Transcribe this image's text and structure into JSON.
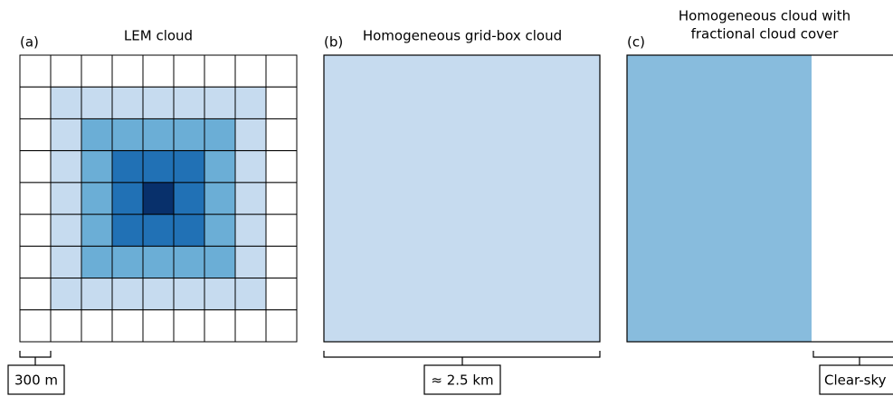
{
  "panels": [
    {
      "letter": "(a)",
      "title": "LEM cloud",
      "scale_label": "300 m"
    },
    {
      "letter": "(b)",
      "title": "Homogeneous grid-box cloud",
      "scale_label": "≈ 2.5 km"
    },
    {
      "letter": "(c)",
      "title_lines": [
        "Homogeneous cloud with",
        "fractional cloud cover"
      ],
      "scale_label": "Clear-sky"
    }
  ]
}
